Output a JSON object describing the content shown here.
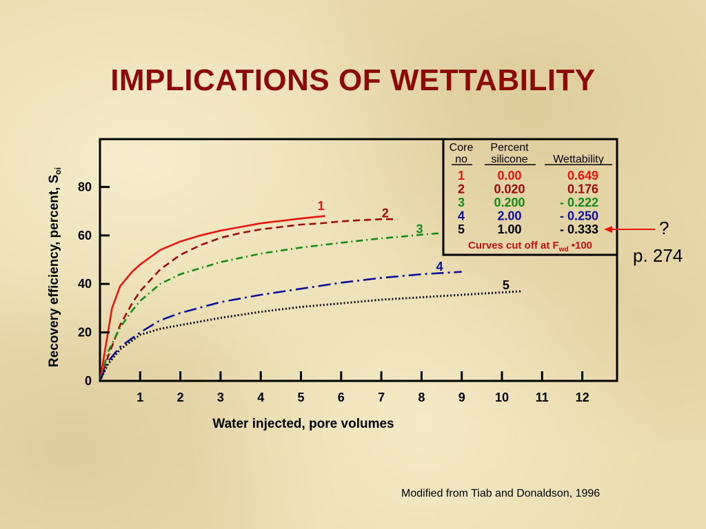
{
  "title": "IMPLICATIONS OF WETTABILITY",
  "side_note": {
    "question": "?",
    "page_ref": "p. 274"
  },
  "credit": "Modified from Tiab and Donaldson, 1996",
  "colors": {
    "title": "#8b0a0a",
    "core1": "#e8150f",
    "core2": "#9c0a0a",
    "core3": "#168a16",
    "core4": "#0b0b9c",
    "core5": "#000000"
  },
  "chart_data": {
    "type": "line",
    "xlabel": "Water injected, pore volumes",
    "ylabel": "Recovery efficiency, percent, S",
    "ylabel_sub": "oi",
    "xlim": [
      0,
      13
    ],
    "ylim": [
      0,
      97
    ],
    "x_ticks": [
      1,
      2,
      3,
      4,
      5,
      6,
      7,
      8,
      9,
      10,
      11,
      12
    ],
    "y_ticks": [
      0,
      20,
      40,
      60,
      80
    ],
    "legend": {
      "placement": "top-right",
      "header_core": [
        "Core",
        "no"
      ],
      "header_silicone": [
        "Percent",
        "silicone"
      ],
      "header_wettability": "Wettability",
      "rows": [
        {
          "core": "1",
          "silicone": "0.00",
          "wettability": "0.649",
          "color": "#e8150f"
        },
        {
          "core": "2",
          "silicone": "0.020",
          "wettability": "0.176",
          "color": "#9c0a0a"
        },
        {
          "core": "3",
          "silicone": "0.200",
          "wettability": "- 0.222",
          "color": "#168a16"
        },
        {
          "core": "4",
          "silicone": "2.00",
          "wettability": "- 0.250",
          "color": "#0b0b9c"
        },
        {
          "core": "5",
          "silicone": "1.00",
          "wettability": "- 0.333",
          "color": "#000000"
        }
      ],
      "footnote_main": "Curves cut off at F",
      "footnote_sub": "wd",
      "footnote_tail": " •100"
    },
    "series": [
      {
        "name": "1",
        "color": "#e8150f",
        "dash": "solid",
        "x": [
          0,
          0.1,
          0.3,
          0.5,
          0.8,
          1.0,
          1.5,
          2.0,
          2.5,
          3.0,
          3.5,
          4.0,
          4.5,
          5.0,
          5.6
        ],
        "y": [
          0,
          10,
          30,
          39,
          45,
          48,
          54,
          57.5,
          60,
          62,
          63.5,
          65,
          66,
          67,
          68
        ]
      },
      {
        "name": "2",
        "color": "#9c0a0a",
        "dash": "dash",
        "x": [
          0,
          0.2,
          0.5,
          0.8,
          1.0,
          1.5,
          2.0,
          2.5,
          3.0,
          3.5,
          4.0,
          4.5,
          5.0,
          5.5,
          6.0,
          6.5,
          7.0,
          7.4
        ],
        "y": [
          0,
          10,
          23,
          32,
          37,
          46,
          52,
          56,
          59,
          61,
          62.5,
          63.5,
          64.5,
          65,
          65.8,
          66.3,
          66.7,
          66.7
        ]
      },
      {
        "name": "3",
        "color": "#168a16",
        "dash": "dashdot",
        "x": [
          0,
          0.2,
          0.5,
          0.8,
          1.0,
          1.5,
          2.0,
          3.0,
          4.0,
          5.0,
          6.0,
          7.0,
          7.5,
          8.0,
          8.5
        ],
        "y": [
          0,
          12,
          22,
          29,
          33,
          40,
          44,
          49,
          52.5,
          55,
          57,
          58.8,
          59.5,
          60.3,
          61
        ]
      },
      {
        "name": "4",
        "color": "#0b0b9c",
        "dash": "longdashdot",
        "x": [
          0,
          0.2,
          0.5,
          1.0,
          1.5,
          2.0,
          3.0,
          4.0,
          5.0,
          6.0,
          7.0,
          8.0,
          9.0
        ],
        "y": [
          0,
          8,
          14,
          20,
          25,
          28,
          32.5,
          35.5,
          38,
          40.5,
          42.5,
          44,
          45
        ]
      },
      {
        "name": "5",
        "color": "#000000",
        "dash": "dot",
        "x": [
          0,
          0.2,
          0.5,
          1.0,
          1.5,
          2.0,
          3.0,
          4.0,
          5.0,
          6.0,
          7.0,
          8.0,
          9.0,
          10.0,
          10.5
        ],
        "y": [
          0,
          7,
          13,
          19,
          21.5,
          23,
          26,
          28.5,
          30.5,
          32,
          33.5,
          34.5,
          35.5,
          36.5,
          37
        ]
      }
    ]
  }
}
